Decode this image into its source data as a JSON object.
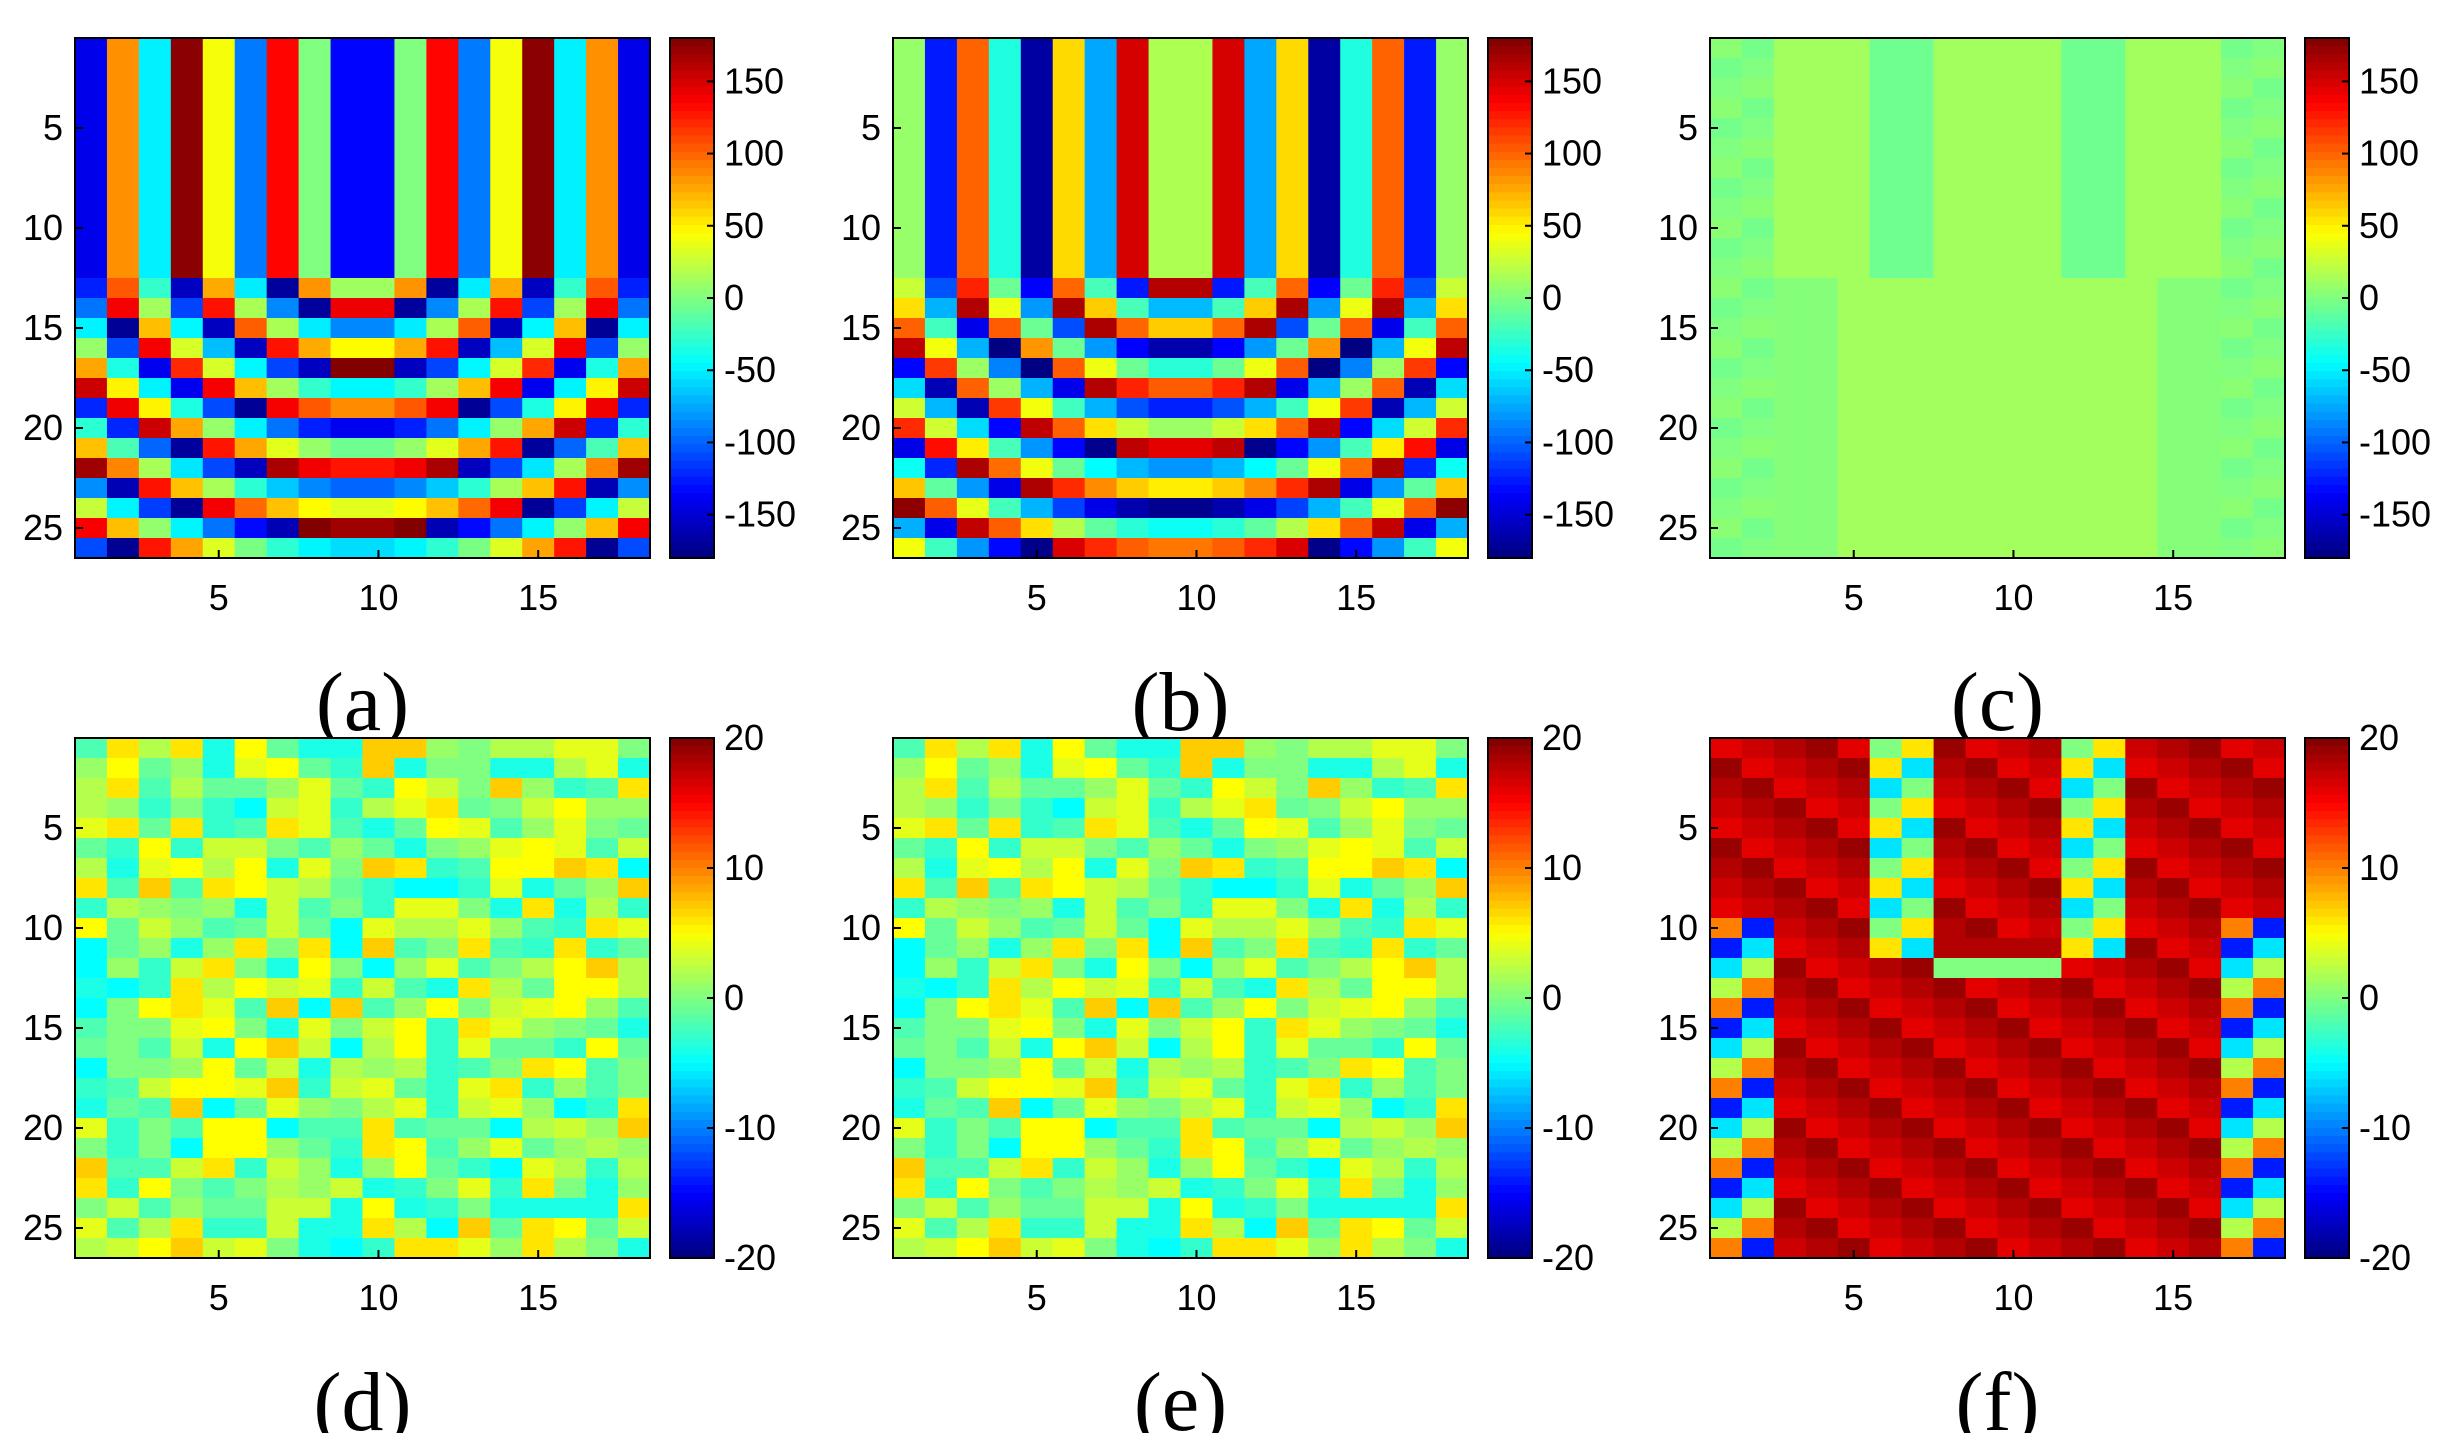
{
  "chart_data": [
    {
      "type": "heatmap",
      "label": "(a)",
      "colormap": "jet",
      "clim": [
        -180,
        180
      ],
      "rows": 26,
      "cols": 18,
      "xticks": [
        5,
        10,
        15
      ],
      "yticks": [
        5,
        10,
        15,
        20,
        25
      ],
      "cbar_ticks": [
        150,
        100,
        50,
        0,
        -50,
        -100,
        -150
      ],
      "cbar_ticklabels": [
        "150",
        "100",
        "50",
        "0",
        "-50",
        "-100",
        "-150"
      ],
      "xticklabels": [
        "5",
        "10",
        "15"
      ],
      "yticklabels": [
        "5",
        "10",
        "15",
        "20",
        "25"
      ],
      "pattern": "phase",
      "phase_offset": 0
    },
    {
      "type": "heatmap",
      "label": "(b)",
      "colormap": "jet",
      "clim": [
        -180,
        180
      ],
      "rows": 26,
      "cols": 18,
      "xticks": [
        5,
        10,
        15
      ],
      "yticks": [
        5,
        10,
        15,
        20,
        25
      ],
      "cbar_ticks": [
        150,
        100,
        50,
        0,
        -50,
        -100,
        -150
      ],
      "cbar_ticklabels": [
        "150",
        "100",
        "50",
        "0",
        "-50",
        "-100",
        "-150"
      ],
      "xticklabels": [
        "5",
        "10",
        "15"
      ],
      "yticklabels": [
        "5",
        "10",
        "15",
        "20",
        "25"
      ],
      "pattern": "phase",
      "phase_offset": 150
    },
    {
      "type": "heatmap",
      "label": "(c)",
      "colormap": "jet",
      "clim": [
        -180,
        180
      ],
      "rows": 26,
      "cols": 18,
      "xticks": [
        5,
        10,
        15
      ],
      "yticks": [
        5,
        10,
        15,
        20,
        25
      ],
      "cbar_ticks": [
        150,
        100,
        50,
        0,
        -50,
        -100,
        -150
      ],
      "cbar_ticklabels": [
        "150",
        "100",
        "50",
        "0",
        "-50",
        "-100",
        "-150"
      ],
      "xticklabels": [
        "5",
        "10",
        "15"
      ],
      "yticklabels": [
        "5",
        "10",
        "15",
        "20",
        "25"
      ],
      "pattern": "phase_difference"
    },
    {
      "type": "heatmap",
      "label": "(d)",
      "colormap": "jet",
      "clim": [
        -20,
        20
      ],
      "rows": 26,
      "cols": 18,
      "xticks": [
        5,
        10,
        15
      ],
      "yticks": [
        5,
        10,
        15,
        20,
        25
      ],
      "cbar_ticks": [
        20,
        10,
        0,
        -10,
        -20
      ],
      "cbar_ticklabels": [
        "20",
        "10",
        "0",
        "-10",
        "-20"
      ],
      "xticklabels": [
        "5",
        "10",
        "15"
      ],
      "yticklabels": [
        "5",
        "10",
        "15",
        "20",
        "25"
      ],
      "pattern": "noise",
      "seed": 7
    },
    {
      "type": "heatmap",
      "label": "(e)",
      "colormap": "jet",
      "clim": [
        -20,
        20
      ],
      "rows": 26,
      "cols": 18,
      "xticks": [
        5,
        10,
        15
      ],
      "yticks": [
        5,
        10,
        15,
        20,
        25
      ],
      "cbar_ticks": [
        20,
        10,
        0,
        -10,
        -20
      ],
      "cbar_ticklabels": [
        "20",
        "10",
        "0",
        "-10",
        "-20"
      ],
      "xticklabels": [
        "5",
        "10",
        "15"
      ],
      "yticklabels": [
        "5",
        "10",
        "15",
        "20",
        "25"
      ],
      "pattern": "noise",
      "seed": 7
    },
    {
      "type": "heatmap",
      "label": "(f)",
      "colormap": "jet",
      "clim": [
        -20,
        20
      ],
      "rows": 26,
      "cols": 18,
      "xticks": [
        5,
        10,
        15
      ],
      "yticks": [
        5,
        10,
        15,
        20,
        25
      ],
      "cbar_ticks": [
        20,
        10,
        0,
        -10,
        -20
      ],
      "cbar_ticklabels": [
        "20",
        "10",
        "0",
        "-10",
        "-20"
      ],
      "xticklabels": [
        "5",
        "10",
        "15"
      ],
      "yticklabels": [
        "5",
        "10",
        "15",
        "20",
        "25"
      ],
      "pattern": "amplitude_error"
    }
  ]
}
